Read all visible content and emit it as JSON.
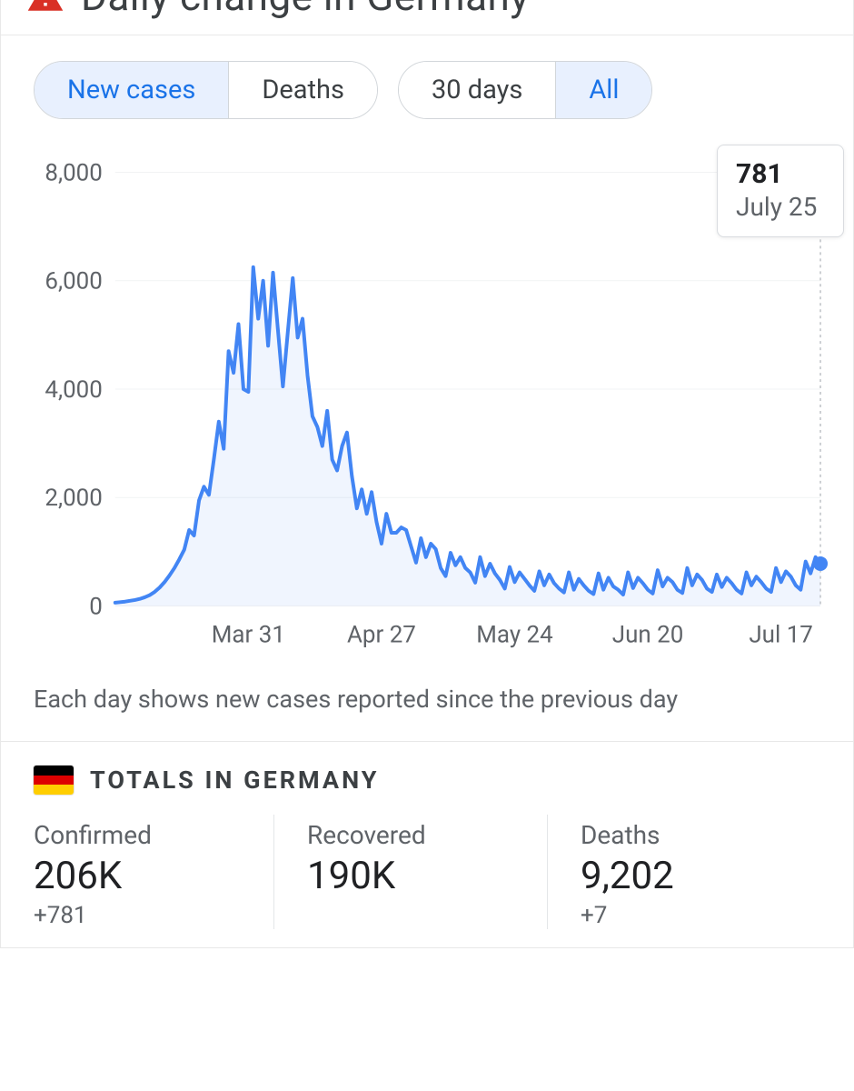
{
  "header": {
    "title": "Daily change in Germany",
    "icon": "warning-triangle"
  },
  "controls": {
    "metric": {
      "options": [
        "New cases",
        "Deaths"
      ],
      "selected": 0
    },
    "range": {
      "options": [
        "30 days",
        "All"
      ],
      "selected": 1
    }
  },
  "chart": {
    "type": "line-area",
    "line_color": "#4285f4",
    "area_color": "#4285f4",
    "area_opacity": 0.08,
    "background_color": "#ffffff",
    "grid_color": "#f1f3f4",
    "axis_label_color": "#5f6368",
    "axis_fontsize": 26,
    "y": {
      "min": 0,
      "max": 8200,
      "ticks": [
        0,
        2000,
        4000,
        6000,
        8000
      ],
      "tick_labels": [
        "0",
        "2,000",
        "4,000",
        "6,000",
        "8,000"
      ]
    },
    "x": {
      "tick_indices": [
        27,
        54,
        81,
        108,
        135
      ],
      "tick_labels": [
        "Mar 31",
        "Apr 27",
        "May 24",
        "Jun 20",
        "Jul 17"
      ]
    },
    "tooltip": {
      "value": "781",
      "date": "July 25",
      "index": 143
    },
    "last_point": {
      "value": 781
    },
    "values": [
      60,
      70,
      80,
      95,
      110,
      130,
      160,
      200,
      260,
      340,
      440,
      560,
      700,
      860,
      1040,
      1400,
      1300,
      1950,
      2200,
      2050,
      2700,
      3400,
      2900,
      4700,
      4300,
      5200,
      4000,
      3950,
      6250,
      5300,
      6000,
      4800,
      6150,
      5100,
      4050,
      5050,
      6050,
      4950,
      5300,
      4250,
      3500,
      3300,
      2950,
      3600,
      2700,
      2500,
      2950,
      3200,
      2400,
      1800,
      2150,
      1700,
      2100,
      1550,
      1150,
      1700,
      1350,
      1350,
      1450,
      1400,
      1100,
      800,
      1250,
      900,
      1150,
      1050,
      700,
      550,
      980,
      750,
      900,
      700,
      620,
      430,
      900,
      550,
      780,
      600,
      480,
      320,
      720,
      440,
      620,
      500,
      380,
      280,
      640,
      380,
      580,
      420,
      320,
      250,
      620,
      300,
      500,
      380,
      280,
      220,
      600,
      300,
      520,
      360,
      300,
      210,
      620,
      330,
      520,
      420,
      300,
      230,
      660,
      360,
      520,
      440,
      300,
      240,
      700,
      380,
      580,
      480,
      320,
      260,
      580,
      350,
      520,
      420,
      300,
      230,
      620,
      380,
      540,
      440,
      320,
      260,
      700,
      440,
      640,
      540,
      380,
      300,
      820,
      600,
      900,
      781
    ]
  },
  "note": "Each day shows new cases reported since the previous day",
  "totals": {
    "title": "TOTALS IN GERMANY",
    "flag_colors": [
      "#000000",
      "#dd0000",
      "#ffce00"
    ],
    "stats": [
      {
        "label": "Confirmed",
        "value": "206K",
        "delta": "+781"
      },
      {
        "label": "Recovered",
        "value": "190K",
        "delta": ""
      },
      {
        "label": "Deaths",
        "value": "9,202",
        "delta": "+7"
      }
    ]
  }
}
